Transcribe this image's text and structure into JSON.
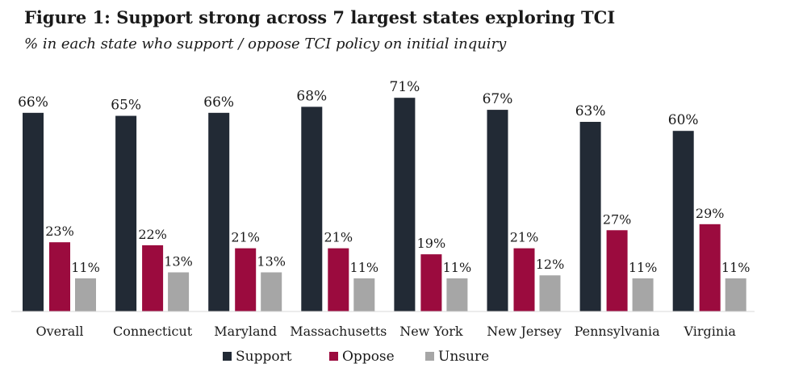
{
  "header": {
    "title": "Figure 1: Support strong across 7 largest states exploring TCI",
    "subtitle": "% in each state who support / oppose TCI policy on initial inquiry"
  },
  "chart_data": {
    "type": "bar",
    "title": "Figure 1: Support strong across 7 largest states exploring TCI",
    "subtitle": "% in each state who support / oppose TCI policy on initial inquiry",
    "xlabel": "",
    "ylabel": "",
    "ylim": [
      0,
      75
    ],
    "grid": false,
    "legend_position": "bottom-center",
    "value_suffix": "%",
    "categories": [
      "Overall",
      "Connecticut",
      "Maryland",
      "Massachusetts",
      "New York",
      "New Jersey",
      "Pennsylvania",
      "Virginia"
    ],
    "series": [
      {
        "name": "Support",
        "color": "#222a35",
        "values": [
          66,
          65,
          66,
          68,
          71,
          67,
          63,
          60
        ]
      },
      {
        "name": "Oppose",
        "color": "#9b0b3e",
        "values": [
          23,
          22,
          21,
          21,
          19,
          21,
          27,
          29
        ]
      },
      {
        "name": "Unsure",
        "color": "#a6a6a6",
        "values": [
          11,
          13,
          13,
          11,
          11,
          12,
          11,
          11
        ]
      }
    ]
  }
}
